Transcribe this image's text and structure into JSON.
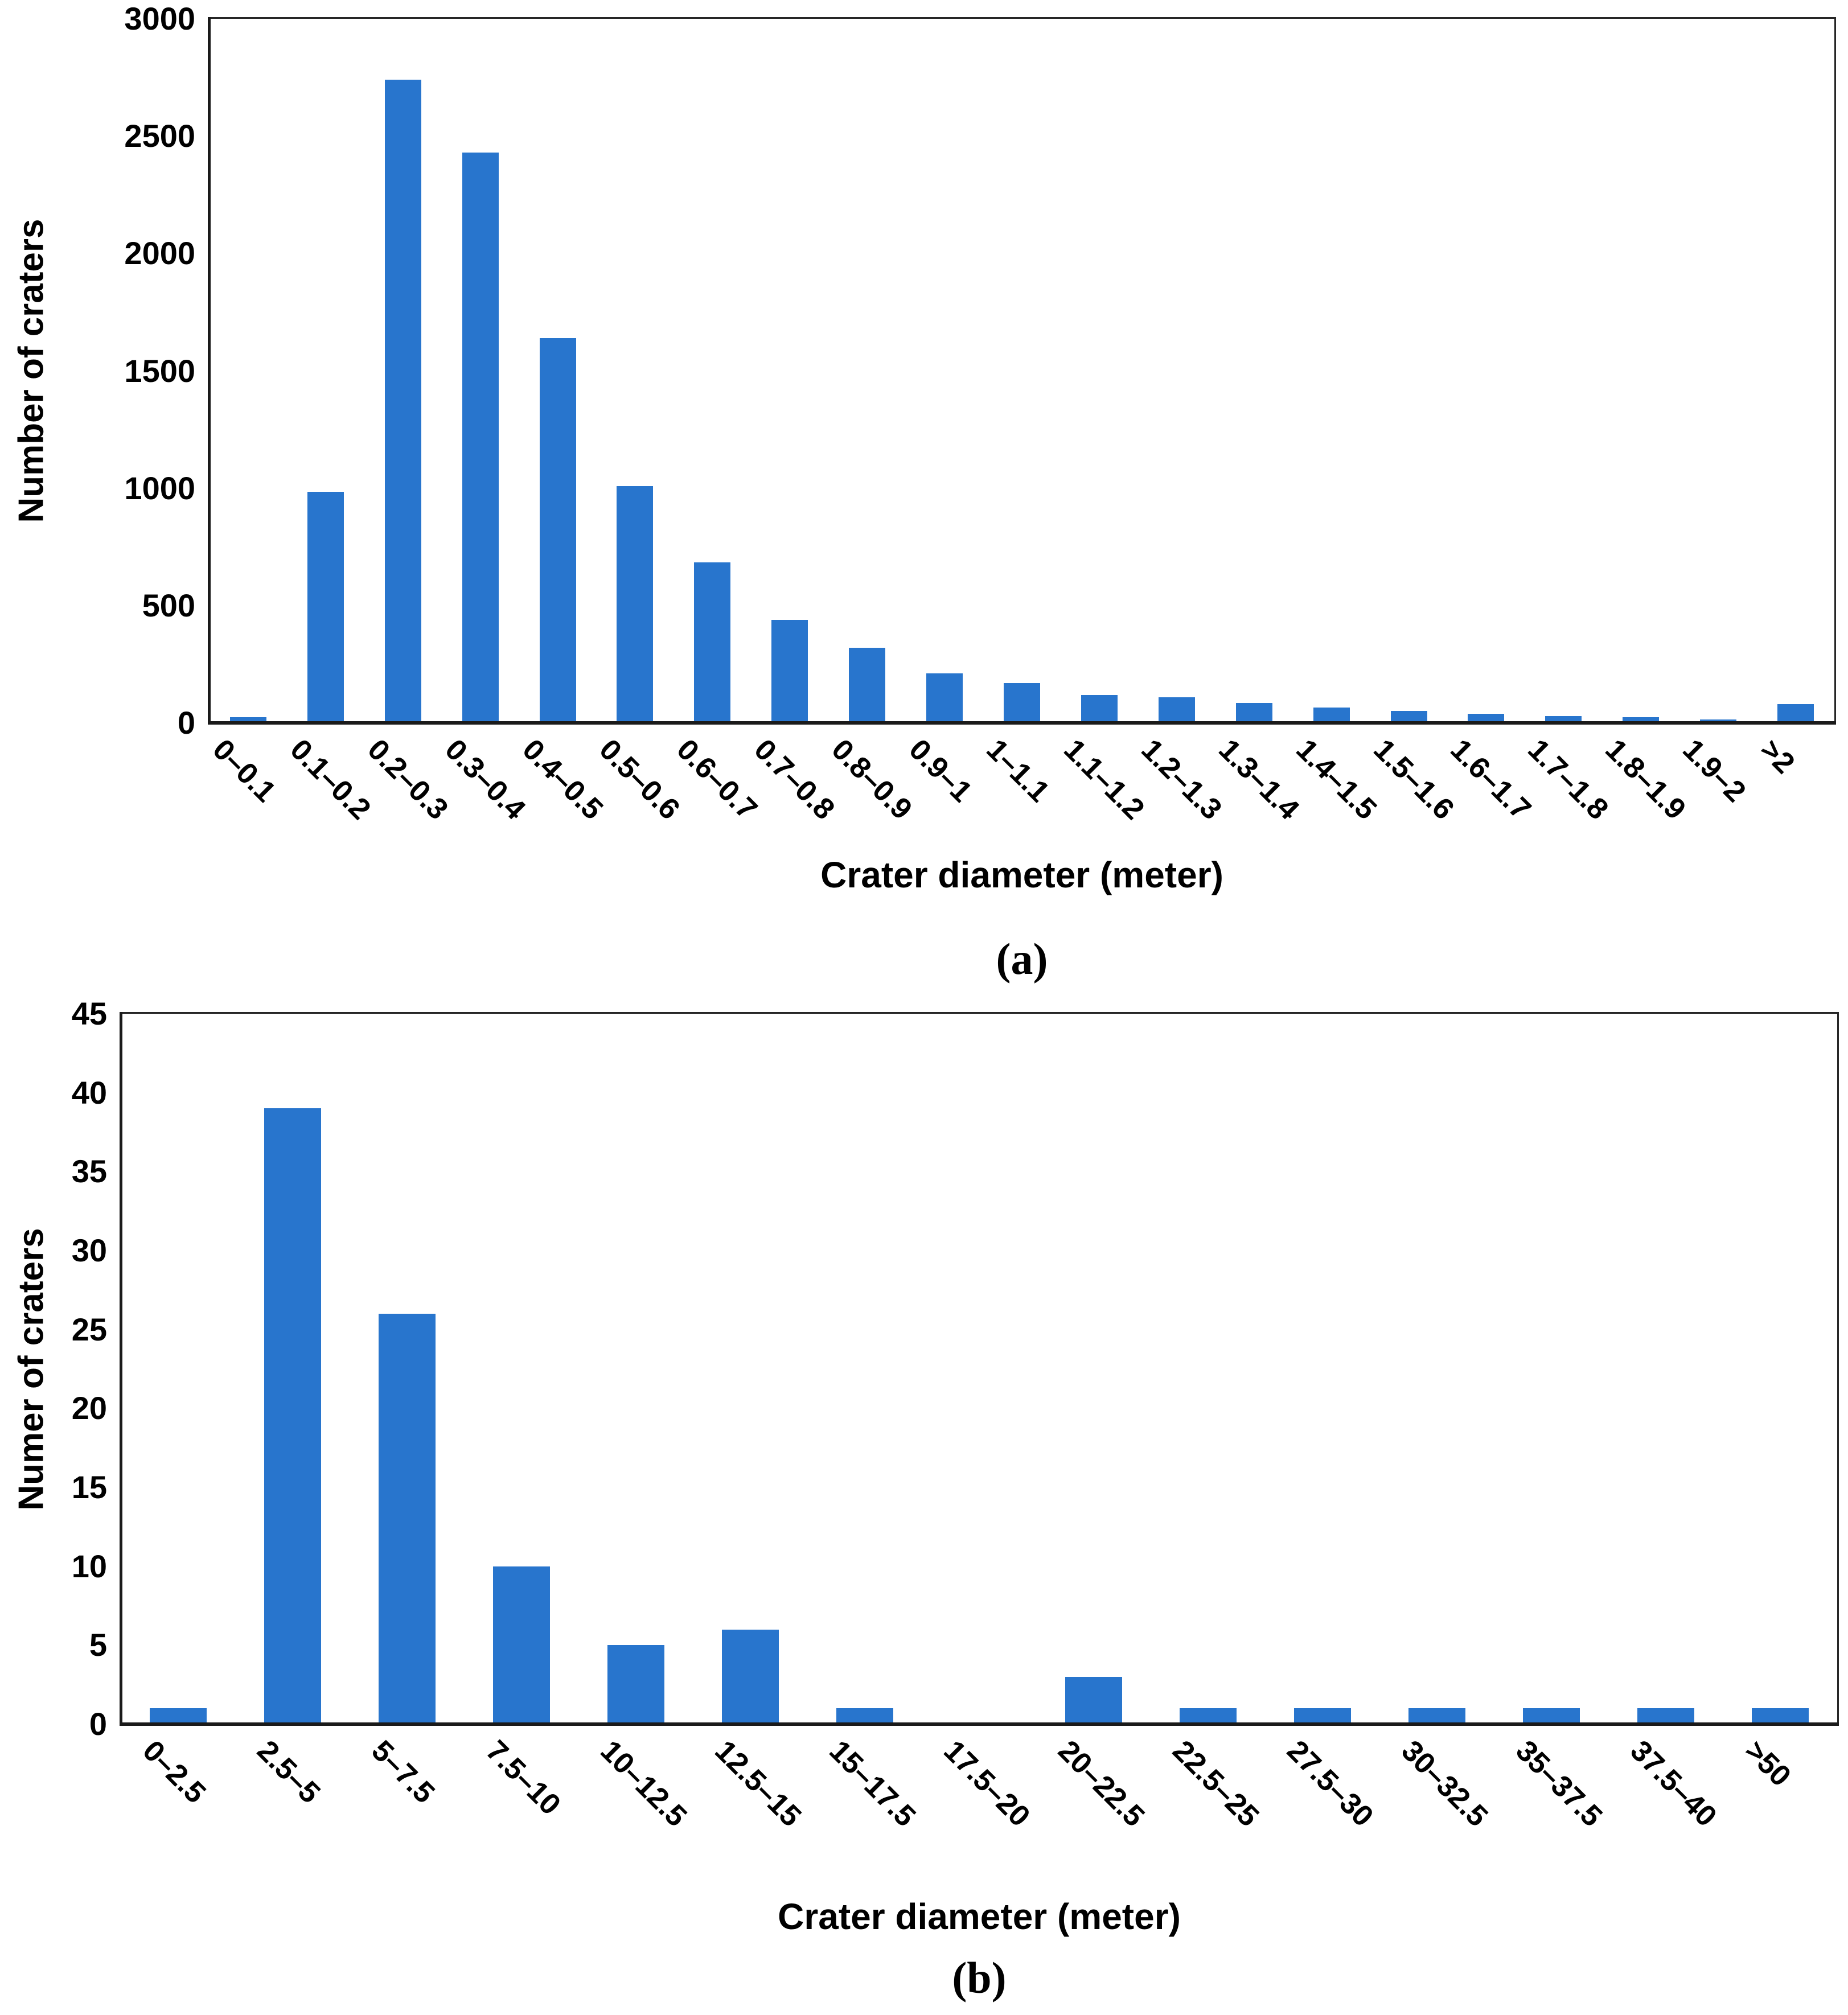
{
  "page": {
    "background": "#ffffff"
  },
  "chart_data": [
    {
      "type": "bar",
      "panel": "a",
      "caption": "(a)",
      "title": "",
      "xlabel": "Crater diameter (meter)",
      "ylabel": "Number of craters",
      "categories": [
        "0–0.1",
        "0.1–0.2",
        "0.2–0.3",
        "0.3–0.4",
        "0.4–0.5",
        "0.5–0.6",
        "0.6–0.7",
        "0.7–0.8",
        "0.8–0.9",
        "0.9–1",
        "1–1.1",
        "1.1–1.2",
        "1.2–1.3",
        "1.3–1.4",
        "1.4–1.5",
        "1.5–1.6",
        "1.6–1.7",
        "1.7–1.8",
        "1.8–1.9",
        "1.9–2",
        ">2"
      ],
      "values": [
        25,
        985,
        2740,
        2430,
        1640,
        1010,
        685,
        440,
        320,
        210,
        170,
        120,
        110,
        85,
        65,
        50,
        40,
        30,
        25,
        15,
        80
      ],
      "ylim": [
        0,
        3000
      ],
      "ytick_step": 500,
      "yticks": [
        0,
        500,
        1000,
        1500,
        2000,
        2500,
        3000
      ],
      "bar_color": "#2875cd",
      "axis_color": "#262626",
      "grid": false,
      "legend": "none"
    },
    {
      "type": "bar",
      "panel": "b",
      "caption": "(b)",
      "title": "",
      "xlabel": "Crater diameter (meter)",
      "ylabel": "Numer of craters",
      "categories": [
        "0–2.5",
        "2.5–5",
        "5–7.5",
        "7.5–10",
        "10–12.5",
        "12.5–15",
        "15–17.5",
        "17.5–20",
        "20–22.5",
        "22.5–25",
        "27.5–30",
        "30–32.5",
        "35–37.5",
        "37.5–40",
        ">50"
      ],
      "values": [
        1,
        39,
        26,
        10,
        5,
        6,
        1,
        0,
        3,
        1,
        1,
        1,
        1,
        1,
        1
      ],
      "ylim": [
        0,
        45
      ],
      "ytick_step": 5,
      "yticks": [
        0,
        5,
        10,
        15,
        20,
        25,
        30,
        35,
        40,
        45
      ],
      "bar_color": "#2875cd",
      "axis_color": "#262626",
      "grid": false,
      "legend": "none"
    }
  ]
}
